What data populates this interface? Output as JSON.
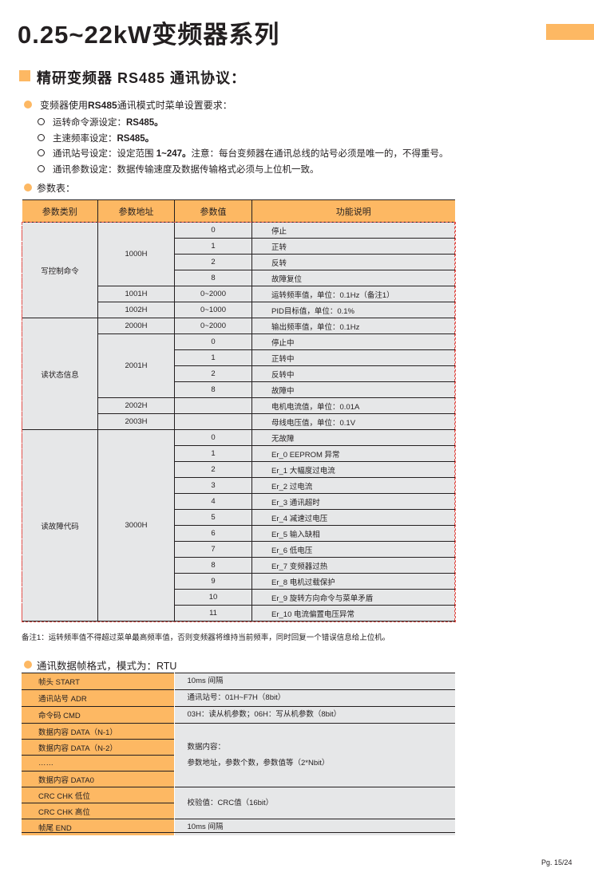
{
  "header": {
    "title": "0.25~22kW变频器系列"
  },
  "section": {
    "title": "精研变频器 RS485  通讯协议："
  },
  "requirements": {
    "heading_pre": "变频器使用",
    "heading_bold": "RS485",
    "heading_post": "通讯模式时菜单设置要求：",
    "items": [
      {
        "label": "运转命令源设定：",
        "bold": "RS485。",
        "rest": ""
      },
      {
        "label": "主速频率设定：",
        "bold": "RS485。",
        "rest": ""
      },
      {
        "label": "通讯站号设定：设定范围 ",
        "bold": "1~247。",
        "rest": "注意：每台变频器在通讯总线的站号必须是唯一的，不得重号。"
      },
      {
        "label": "通讯参数设定：数据传输速度及数据传输格式必须与上位机一致。",
        "bold": "",
        "rest": ""
      }
    ]
  },
  "param_table": {
    "heading": "参数表：",
    "columns": [
      "参数类别",
      "参数地址",
      "参数值",
      "功能说明"
    ],
    "groups": [
      {
        "category": "写控制命令",
        "addresses": [
          {
            "address": "1000H",
            "entries": [
              {
                "value": "0",
                "desc": "停止"
              },
              {
                "value": "1",
                "desc": "正转"
              },
              {
                "value": "2",
                "desc": "反转"
              },
              {
                "value": "8",
                "desc": "故障复位"
              }
            ]
          },
          {
            "address": "1001H",
            "entries": [
              {
                "value": "0~2000",
                "desc": "运转频率值，单位：0.1Hz（备注1）"
              }
            ]
          },
          {
            "address": "1002H",
            "entries": [
              {
                "value": "0~1000",
                "desc": "PID目标值，单位：0.1%"
              }
            ]
          }
        ]
      },
      {
        "category": "读状态信息",
        "addresses": [
          {
            "address": "2000H",
            "entries": [
              {
                "value": "0~2000",
                "desc": "输出频率值，单位：0.1Hz"
              }
            ]
          },
          {
            "address": "2001H",
            "entries": [
              {
                "value": "0",
                "desc": "停止中"
              },
              {
                "value": "1",
                "desc": "正转中"
              },
              {
                "value": "2",
                "desc": "反转中"
              },
              {
                "value": "8",
                "desc": "故障中"
              }
            ]
          },
          {
            "address": "2002H",
            "entries": [
              {
                "value": "",
                "desc": "电机电流值，单位：0.01A"
              }
            ]
          },
          {
            "address": "2003H",
            "entries": [
              {
                "value": "",
                "desc": "母线电压值，单位：0.1V"
              }
            ]
          }
        ]
      },
      {
        "category": "读故障代码",
        "addresses": [
          {
            "address": "3000H",
            "entries": [
              {
                "value": "0",
                "desc": "无故障"
              },
              {
                "value": "1",
                "desc": "Er_0 EEPROM 异常"
              },
              {
                "value": "2",
                "desc": "Er_1 大幅度过电流"
              },
              {
                "value": "3",
                "desc": "Er_2 过电流"
              },
              {
                "value": "4",
                "desc": "Er_3 通讯超时"
              },
              {
                "value": "5",
                "desc": "Er_4 减速过电压"
              },
              {
                "value": "6",
                "desc": "Er_5 输入缺相"
              },
              {
                "value": "7",
                "desc": "Er_6 低电压"
              },
              {
                "value": "8",
                "desc": "Er_7 变频器过热"
              },
              {
                "value": "9",
                "desc": "Er_8 电机过载保护"
              },
              {
                "value": "10",
                "desc": "Er_9 旋转方向命令与菜单矛盾"
              },
              {
                "value": "11",
                "desc": "Er_10 电流偏置电压异常"
              }
            ]
          }
        ]
      }
    ]
  },
  "note": "备注1：运转频率值不得超过菜单最高频率值，否则变频器将维持当前频率，同时回复一个错误信息给上位机。",
  "frame": {
    "heading": "通讯数据帧格式，模式为：RTU",
    "rows": [
      {
        "field": "帧头  START",
        "desc": [
          "10ms 间隔"
        ],
        "span": 1
      },
      {
        "field": "通讯站号 ADR",
        "desc": [
          "通讯站号：01H~F7H（8bit）"
        ],
        "span": 1
      },
      {
        "field": "命令码 CMD",
        "desc": [
          "03H：读从机参数；06H：写从机参数（8bit）"
        ],
        "span": 1
      },
      {
        "field": "数据内容 DATA（N-1）",
        "desc": [
          "数据内容：",
          "参数地址，参数个数，参数值等（2*Nbit）"
        ],
        "span": 4
      },
      {
        "field": "数据内容 DATA（N-2）"
      },
      {
        "field": "……"
      },
      {
        "field": "数据内容 DATA0"
      },
      {
        "field": "CRC CHK 低位",
        "desc": [
          "校验值：CRC值（16bit）"
        ],
        "span": 2
      },
      {
        "field": "CRC CHK 高位"
      },
      {
        "field": "帧尾  END",
        "desc": [
          "10ms 间隔"
        ],
        "span": 1
      }
    ]
  },
  "footer": {
    "page": "Pg. 15/24"
  },
  "colors": {
    "accent": "#fdb863",
    "cell": "#e6e7e8",
    "dashed_outline": "#e2504a"
  }
}
